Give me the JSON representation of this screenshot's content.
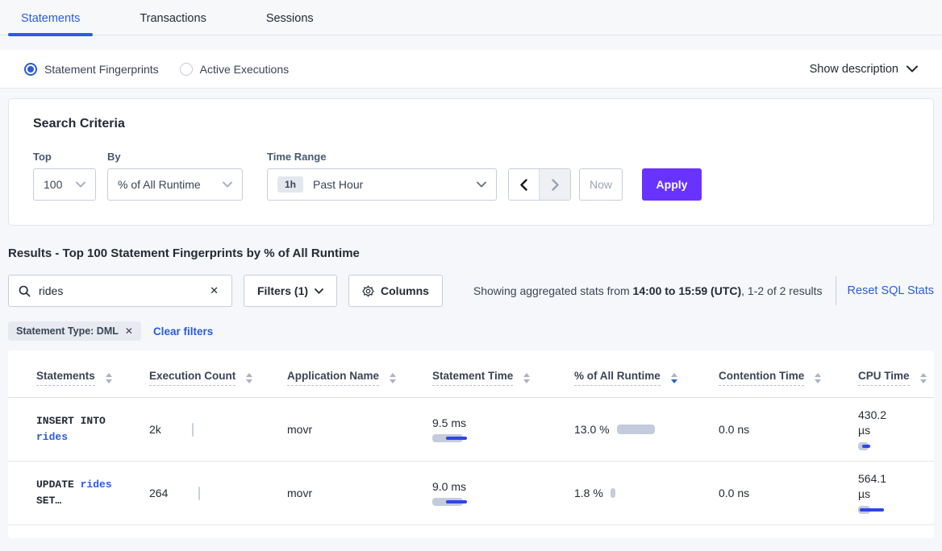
{
  "tabs": [
    {
      "label": "Statements",
      "active": true
    },
    {
      "label": "Transactions",
      "active": false
    },
    {
      "label": "Sessions",
      "active": false
    }
  ],
  "view_toggle": {
    "options": [
      {
        "label": "Statement Fingerprints",
        "selected": true
      },
      {
        "label": "Active Executions",
        "selected": false
      }
    ],
    "show_description_label": "Show description"
  },
  "search_criteria": {
    "title": "Search Criteria",
    "top": {
      "label": "Top",
      "value": "100"
    },
    "by": {
      "label": "By",
      "value": "% of All Runtime"
    },
    "time_range": {
      "label": "Time Range",
      "badge": "1h",
      "value": "Past Hour"
    },
    "now_label": "Now",
    "apply_label": "Apply"
  },
  "results": {
    "heading": "Results - Top 100 Statement Fingerprints by % of All Runtime",
    "search": {
      "value": "rides",
      "clear_icon": "✕"
    },
    "filters_label": "Filters (1)",
    "columns_label": "Columns",
    "summary_prefix": "Showing aggregated stats from ",
    "summary_bold": "14:00 to 15:59 (UTC)",
    "summary_suffix": ", 1-2 of 2 results",
    "reset_label": "Reset SQL Stats",
    "filter_chip": {
      "label": "Statement Type: DML",
      "close_icon": "✕"
    },
    "clear_filters_label": "Clear filters"
  },
  "table": {
    "columns": [
      "Statements",
      "Execution Count",
      "Application Name",
      "Statement Time",
      "% of All Runtime",
      "Contention Time",
      "CPU Time"
    ],
    "sorted_column": "% of All Runtime",
    "sort_direction": "desc",
    "rows": [
      {
        "statement_line1": "INSERT INTO",
        "statement_line1_link": "",
        "statement_line2": "",
        "statement_line2_link": "rides",
        "execution_count": "2k",
        "application_name": "movr",
        "statement_time": "9.5 ms",
        "pct_runtime": "13.0 %",
        "contention_time": "0.0 ns",
        "cpu_time": "430.2 µs",
        "bars": {
          "statement_time": {
            "track_w": 38,
            "line_w": 26,
            "line_off": 17
          },
          "pct_runtime": {
            "track_w": 47
          },
          "cpu_time": {
            "track_w": 13,
            "line_w": 10,
            "line_off": 5
          }
        }
      },
      {
        "statement_line1": "UPDATE ",
        "statement_line1_link": "rides",
        "statement_line2": "SET…",
        "statement_line2_link": "",
        "execution_count": "264",
        "application_name": "movr",
        "statement_time": "9.0 ms",
        "pct_runtime": "1.8 %",
        "contention_time": "0.0 ns",
        "cpu_time": "564.1 µs",
        "bars": {
          "statement_time": {
            "track_w": 38,
            "line_w": 26,
            "line_off": 17
          },
          "pct_runtime": {
            "track_w": 6
          },
          "cpu_time": {
            "track_w": 15,
            "line_w": 30,
            "line_off": 2
          }
        }
      }
    ]
  },
  "colors": {
    "accent_blue": "#2b5ce0",
    "apply_purple": "#6933ff",
    "bar_gray": "#c3cbdd",
    "bar_blue": "#2c46e8",
    "page_bg": "#f5f7fa"
  }
}
